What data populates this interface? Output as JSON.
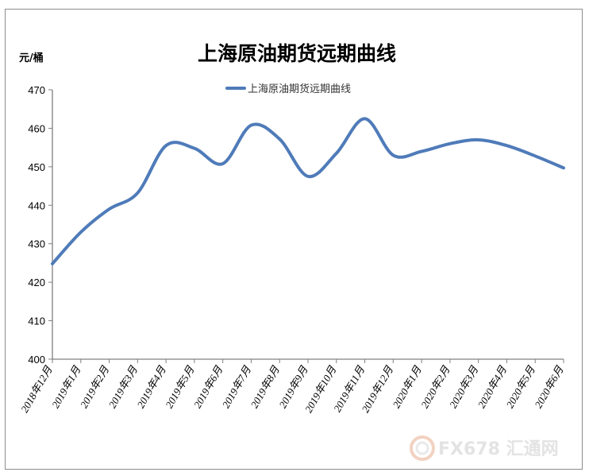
{
  "chart_data": {
    "type": "line",
    "title": "上海原油期货远期曲线",
    "ylabel": "元/桶",
    "xlabel": "",
    "ylim": [
      400,
      470
    ],
    "yticks": [
      400,
      410,
      420,
      430,
      440,
      450,
      460,
      470
    ],
    "categories": [
      "2018年12月",
      "2019年1月",
      "2019年2月",
      "2019年3月",
      "2019年4月",
      "2019年5月",
      "2019年6月",
      "2019年7月",
      "2019年8月",
      "2019年9月",
      "2019年10月",
      "2019年11月",
      "2019年12月",
      "2020年1月",
      "2020年2月",
      "2020年3月",
      "2020年4月",
      "2020年5月",
      "2020年6月"
    ],
    "series": [
      {
        "name": "上海原油期货远期曲线",
        "color": "#4f7bb9",
        "values": [
          424.8,
          433.0,
          439.0,
          443.2,
          455.5,
          454.8,
          450.8,
          460.8,
          457.2,
          447.5,
          453.5,
          462.5,
          453.0,
          454.0,
          456.0,
          457.0,
          455.5,
          452.8,
          449.7
        ]
      }
    ],
    "legend": "top-center",
    "grid": false
  },
  "watermark": {
    "text": "FX678 汇通网",
    "color": "#e3e3e3"
  }
}
